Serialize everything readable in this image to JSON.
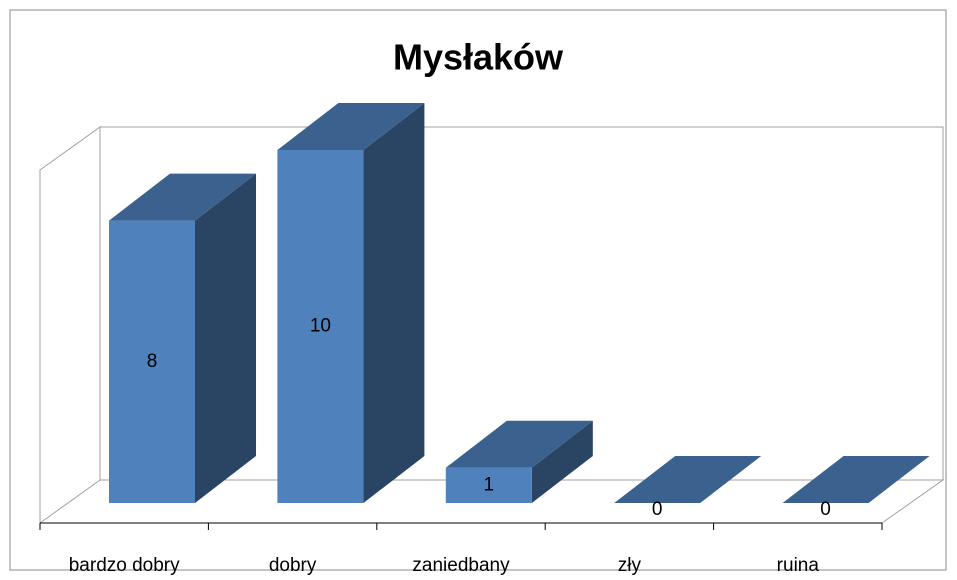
{
  "chart_data": {
    "type": "bar3d",
    "title": "Mysłaków",
    "categories": [
      "bardzo dobry",
      "dobry",
      "zaniedbany",
      "zły",
      "ruina"
    ],
    "values": [
      8,
      10,
      1,
      0,
      0
    ],
    "color": "#4f81bd"
  }
}
